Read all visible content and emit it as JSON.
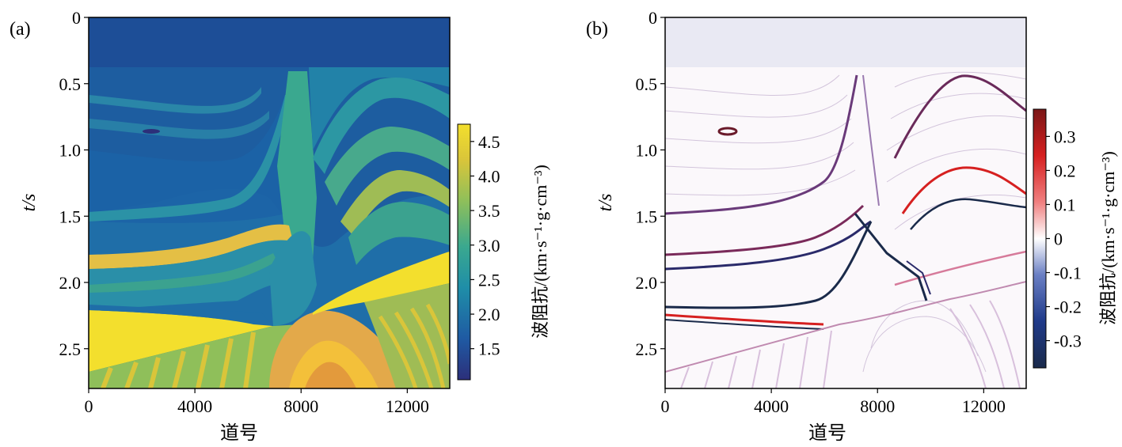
{
  "chart_data": [
    {
      "type": "heatmap",
      "panel_label": "(a)",
      "xlabel": "道号",
      "ylabel": "t/s",
      "xlim": [
        0,
        13600
      ],
      "ylim": [
        2.8,
        0
      ],
      "xticks": [
        0,
        4000,
        8000,
        12000
      ],
      "yticks": [
        0,
        0.5,
        1.0,
        1.5,
        2.0,
        2.5
      ],
      "ytick_labels": [
        "0",
        "0.5",
        "1.0",
        "1.5",
        "2.0",
        "2.5"
      ],
      "colorbar": {
        "label": "波阻抗/(km·s⁻¹·g·cm⁻³)",
        "range": [
          1.05,
          4.75
        ],
        "ticks": [
          1.5,
          2.0,
          2.5,
          3.0,
          3.5,
          4.0,
          4.5
        ],
        "tick_labels": [
          "1.5",
          "2.0",
          "2.5",
          "3.0",
          "3.5",
          "4.0",
          "4.5"
        ],
        "colormap": [
          "#2c2f7a",
          "#1f5aa3",
          "#1f8ea8",
          "#3aa88f",
          "#8fbf5a",
          "#d9c53a",
          "#f3df2d"
        ]
      },
      "water_layer": {
        "t_bottom": 0.38,
        "value": 1.5,
        "color": "#1d4e97"
      },
      "notable_features": [
        {
          "kind": "small lens",
          "trace": 2400,
          "t": 0.86
        },
        {
          "kind": "high-impedance layer",
          "t_range": [
            1.8,
            1.9
          ],
          "value": 4.3
        },
        {
          "kind": "high-impedance wedge",
          "t_range": [
            2.25,
            2.7
          ],
          "value": 4.7
        },
        {
          "kind": "high-impedance block (right)",
          "trace_range": [
            8500,
            13600
          ],
          "t_range": [
            1.75,
            2.3
          ],
          "value": 4.7
        },
        {
          "kind": "anticline",
          "trace": 11200,
          "t_top": 0.42
        }
      ]
    },
    {
      "type": "heatmap",
      "panel_label": "(b)",
      "xlabel": "道号",
      "ylabel": "t/s",
      "xlim": [
        0,
        13600
      ],
      "ylim": [
        2.8,
        0
      ],
      "xticks": [
        0,
        4000,
        8000,
        12000
      ],
      "yticks": [
        0,
        0.5,
        1.0,
        1.5,
        2.0,
        2.5
      ],
      "ytick_labels": [
        "0",
        "0.5",
        "1.0",
        "1.5",
        "2.0",
        "2.5"
      ],
      "colorbar": {
        "label": "波阻抗/(km·s⁻¹·g·cm⁻³)",
        "range": [
          -0.38,
          0.38
        ],
        "ticks": [
          0.3,
          0.2,
          0.1,
          0,
          -0.1,
          -0.2,
          -0.3
        ],
        "tick_labels": [
          "0.3",
          "0.2",
          "0.1",
          "0",
          "-0.1",
          "-0.2",
          "-0.3"
        ],
        "colormap": [
          "#1a2a4a",
          "#1f3a8a",
          "#6a7fc4",
          "#ffffff",
          "#f08080",
          "#d62020",
          "#7a1616"
        ]
      },
      "water_layer": {
        "t_bottom": 0.38,
        "value": 0,
        "color": "#e9e9f3"
      }
    }
  ]
}
